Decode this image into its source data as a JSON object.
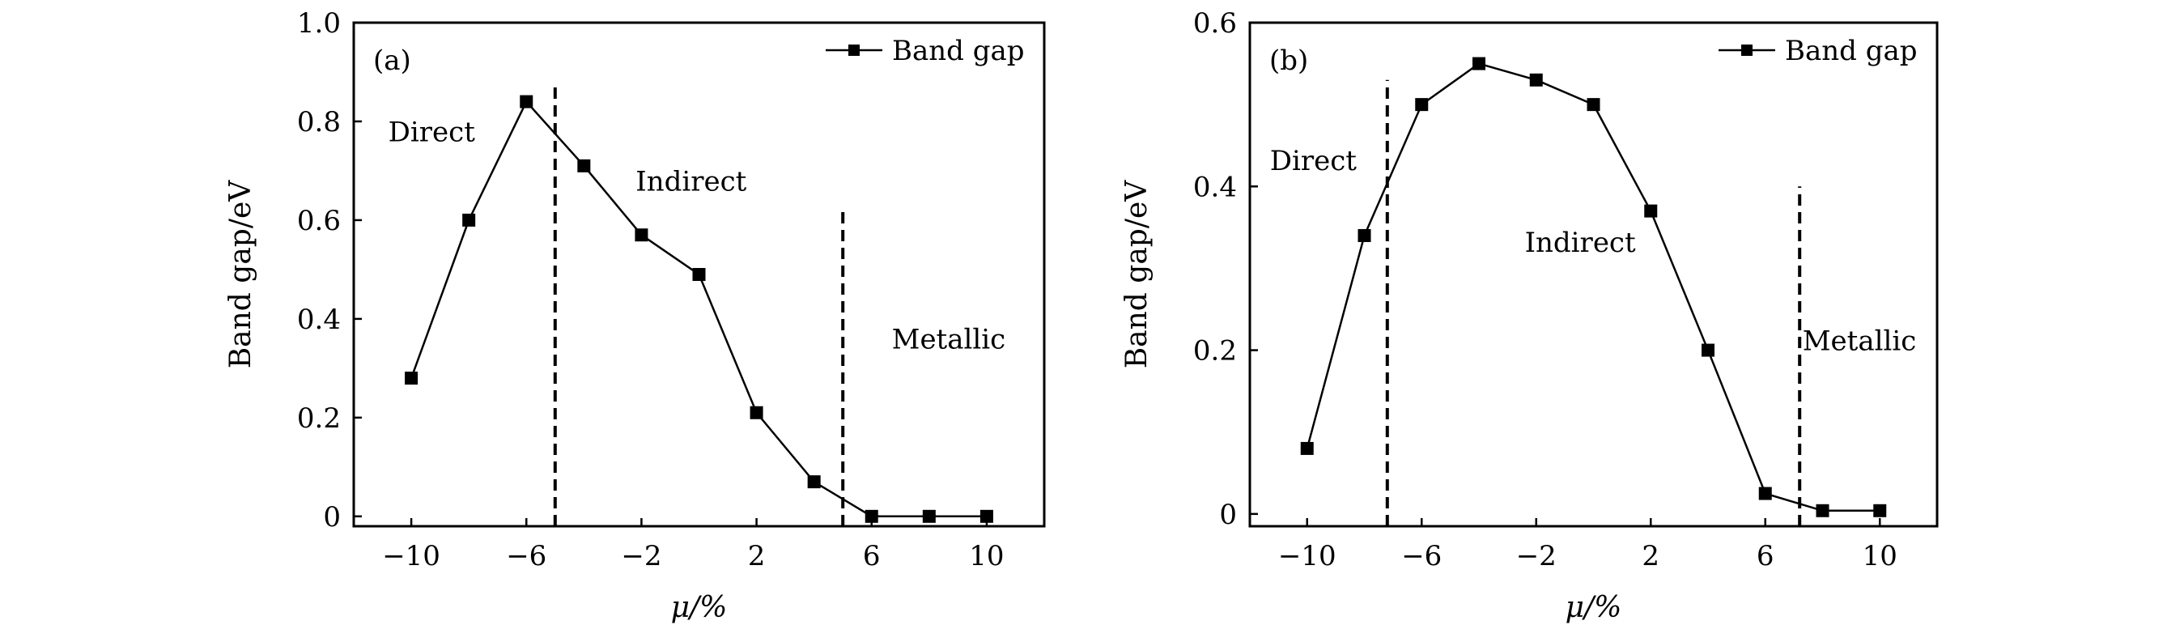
{
  "figure": {
    "background": "#ffffff",
    "line_color": "#000000"
  },
  "chart_data": [
    {
      "panel_label": "(a)",
      "type": "line",
      "x": [
        -10,
        -8,
        -6,
        -4,
        -2,
        0,
        2,
        4,
        6,
        8,
        10
      ],
      "series": [
        {
          "name": "Band gap",
          "values": [
            0.28,
            0.6,
            0.84,
            0.71,
            0.57,
            0.49,
            0.21,
            0.07,
            0.0,
            0.0,
            0.0
          ]
        }
      ],
      "xlabel": "μ/%",
      "ylabel": "Band gap/eV",
      "xlim": [
        -12,
        12
      ],
      "ylim": [
        -0.02,
        1.0
      ],
      "xticks": [
        -10,
        -6,
        -2,
        2,
        6,
        10
      ],
      "xtick_labels": [
        "−10",
        "−6",
        "−2",
        "2",
        "6",
        "10"
      ],
      "yticks": [
        0,
        0.2,
        0.4,
        0.6,
        0.8,
        1.0
      ],
      "ytick_labels": [
        "0",
        "0.2",
        "0.4",
        "0.6",
        "0.8",
        "1.0"
      ],
      "dividers": [
        {
          "x": -5,
          "y_top": 0.87
        },
        {
          "x": 5,
          "y_top": 0.62
        }
      ],
      "regions": [
        {
          "text": "Direct",
          "x": -10.8,
          "y": 0.76
        },
        {
          "text": "Indirect",
          "x": -2.2,
          "y": 0.66
        },
        {
          "text": "Metallic",
          "x": 6.7,
          "y": 0.34
        }
      ],
      "legend": {
        "position": "top-right",
        "label": "Band gap"
      },
      "grid": false
    },
    {
      "panel_label": "(b)",
      "type": "line",
      "x": [
        -10,
        -8,
        -6,
        -4,
        -2,
        0,
        2,
        4,
        6,
        8,
        10
      ],
      "series": [
        {
          "name": "Band gap",
          "values": [
            0.08,
            0.34,
            0.5,
            0.55,
            0.53,
            0.5,
            0.37,
            0.2,
            0.025,
            0.004,
            0.004
          ]
        }
      ],
      "xlabel": "μ/%",
      "ylabel": "Band gap/eV",
      "xlim": [
        -12,
        12
      ],
      "ylim": [
        -0.015,
        0.6
      ],
      "xticks": [
        -10,
        -6,
        -2,
        2,
        6,
        10
      ],
      "xtick_labels": [
        "−10",
        "−6",
        "−2",
        "2",
        "6",
        "10"
      ],
      "yticks": [
        0,
        0.2,
        0.4,
        0.6
      ],
      "ytick_labels": [
        "0",
        "0.2",
        "0.4",
        "0.6"
      ],
      "dividers": [
        {
          "x": -7.2,
          "y_top": 0.53
        },
        {
          "x": 7.2,
          "y_top": 0.4
        }
      ],
      "regions": [
        {
          "text": "Direct",
          "x": -11.3,
          "y": 0.42
        },
        {
          "text": "Indirect",
          "x": -2.4,
          "y": 0.32
        },
        {
          "text": "Metallic",
          "x": 7.3,
          "y": 0.2
        }
      ],
      "legend": {
        "position": "top-right",
        "label": "Band gap"
      },
      "grid": false
    }
  ]
}
